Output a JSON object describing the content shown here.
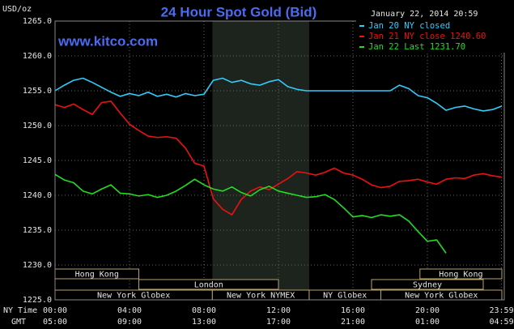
{
  "chart_data": {
    "type": "line",
    "title": "24 Hour Spot Gold (Bid)",
    "unit_label": "USD/oz",
    "watermark": "www.kitco.com",
    "timestamp": "January 22, 2014 20:59",
    "x_axis_labels": [
      "NY Time",
      "GMT"
    ],
    "x": [
      0,
      0.5,
      1,
      1.5,
      2,
      2.5,
      3,
      3.5,
      4,
      4.5,
      5,
      5.5,
      6,
      6.5,
      7,
      7.5,
      8,
      8.5,
      9,
      9.5,
      10,
      10.5,
      11,
      11.5,
      12,
      12.5,
      13,
      13.5,
      14,
      14.5,
      15,
      15.5,
      16,
      16.5,
      17,
      17.5,
      18,
      18.5,
      19,
      19.5,
      20,
      20.5,
      21,
      21.5,
      22,
      22.5,
      23,
      23.5,
      24
    ],
    "series": [
      {
        "name": "Jan 20 NY closed",
        "color": "#33ccff",
        "values": [
          1255,
          1255.8,
          1256.5,
          1256.8,
          1256.2,
          1255.5,
          1254.8,
          1254.2,
          1254.6,
          1254.3,
          1254.8,
          1254.2,
          1254.5,
          1254.1,
          1254.6,
          1254.3,
          1254.5,
          1256.5,
          1256.8,
          1256.2,
          1256.5,
          1256,
          1255.8,
          1256.3,
          1256.6,
          1255.6,
          1255.2,
          1255,
          1255,
          1255,
          1255,
          1255,
          1255,
          1255,
          1255,
          1255,
          1255,
          1255.8,
          1255.3,
          1254.3,
          1254,
          1253.2,
          1252.2,
          1252.6,
          1252.8,
          1252.4,
          1252.1,
          1252.3,
          1252.8
        ]
      },
      {
        "name": "Jan 21 NY close 1240.60",
        "color": "#ee1111",
        "values": [
          1253,
          1252.6,
          1253.1,
          1252.3,
          1251.6,
          1253.3,
          1253.5,
          1251.8,
          1250.2,
          1249.3,
          1248.5,
          1248.3,
          1248.4,
          1248.2,
          1246.8,
          1244.6,
          1244.2,
          1239.5,
          1238,
          1237.2,
          1239.4,
          1240.6,
          1241.2,
          1240.8,
          1241.6,
          1242.4,
          1243.4,
          1243.2,
          1242.9,
          1243.3,
          1243.9,
          1243.2,
          1242.9,
          1242.3,
          1241.5,
          1241.1,
          1241.3,
          1242,
          1242.1,
          1242.3,
          1241.9,
          1241.6,
          1242.3,
          1242.5,
          1242.4,
          1242.9,
          1243.1,
          1242.8,
          1242.6
        ]
      },
      {
        "name": "Jan 22 Last 1231.70",
        "color": "#22dd22",
        "values": [
          1243,
          1242.2,
          1241.8,
          1240.6,
          1240.2,
          1240.9,
          1241.5,
          1240.3,
          1240.2,
          1239.9,
          1240.1,
          1239.7,
          1240,
          1240.6,
          1241.4,
          1242.3,
          1241.5,
          1240.9,
          1240.6,
          1241.2,
          1240.4,
          1239.9,
          1240.8,
          1241.3,
          1240.6,
          1240.3,
          1240,
          1239.7,
          1239.8,
          1240.1,
          1239.4,
          1238.2,
          1236.9,
          1237.1,
          1236.8,
          1237.2,
          1237,
          1237.2,
          1236.3,
          1234.8,
          1233.4,
          1233.6,
          1231.7,
          null,
          null,
          null,
          null,
          null,
          null
        ]
      }
    ],
    "xlim": [
      0,
      24.13
    ],
    "xticks": [
      {
        "value": 0,
        "label": "00:00"
      },
      {
        "value": 4,
        "label": "04:00"
      },
      {
        "value": 8,
        "label": "08:00"
      },
      {
        "value": 12,
        "label": "12:00"
      },
      {
        "value": 16,
        "label": "16:00"
      },
      {
        "value": 20,
        "label": "20:00"
      },
      {
        "value": 23.98,
        "label": "23:59"
      }
    ],
    "gmt_tick_labels": [
      "05:00",
      "09:00",
      "13:00",
      "17:00",
      "21:00",
      "01:00",
      "04:59"
    ],
    "ylim": [
      1225,
      1265
    ],
    "yticks": [
      {
        "value": 1225,
        "label": "1225.0"
      },
      {
        "value": 1230,
        "label": "1230.0"
      },
      {
        "value": 1235,
        "label": "1235.0"
      },
      {
        "value": 1240,
        "label": "1240.0"
      },
      {
        "value": 1245,
        "label": "1245.0"
      },
      {
        "value": 1250,
        "label": "1250.0"
      },
      {
        "value": 1255,
        "label": "1255.0"
      },
      {
        "value": 1260,
        "label": "1260.0"
      },
      {
        "value": 1265,
        "label": "1265.0"
      }
    ],
    "grid": true,
    "shaded_range": [
      8.45,
      13.65
    ],
    "sessions": [
      {
        "label": "Hong Kong",
        "start": 0,
        "end": 4.5,
        "row": 0
      },
      {
        "label": "Hong Kong",
        "start": 19.6,
        "end": 24,
        "row": 0
      },
      {
        "label": "London",
        "start": 4.5,
        "end": 12,
        "row": 1
      },
      {
        "label": "Sydney",
        "start": 17,
        "end": 23,
        "row": 1
      },
      {
        "label": "New York Globex",
        "start": 0,
        "end": 8.45,
        "row": 2
      },
      {
        "label": "New York NYMEX",
        "start": 8.45,
        "end": 13.65,
        "row": 2
      },
      {
        "label": "NY Globex",
        "start": 13.65,
        "end": 17.5,
        "row": 2
      },
      {
        "label": "New York Globex",
        "start": 17.5,
        "end": 24,
        "row": 2
      }
    ]
  }
}
